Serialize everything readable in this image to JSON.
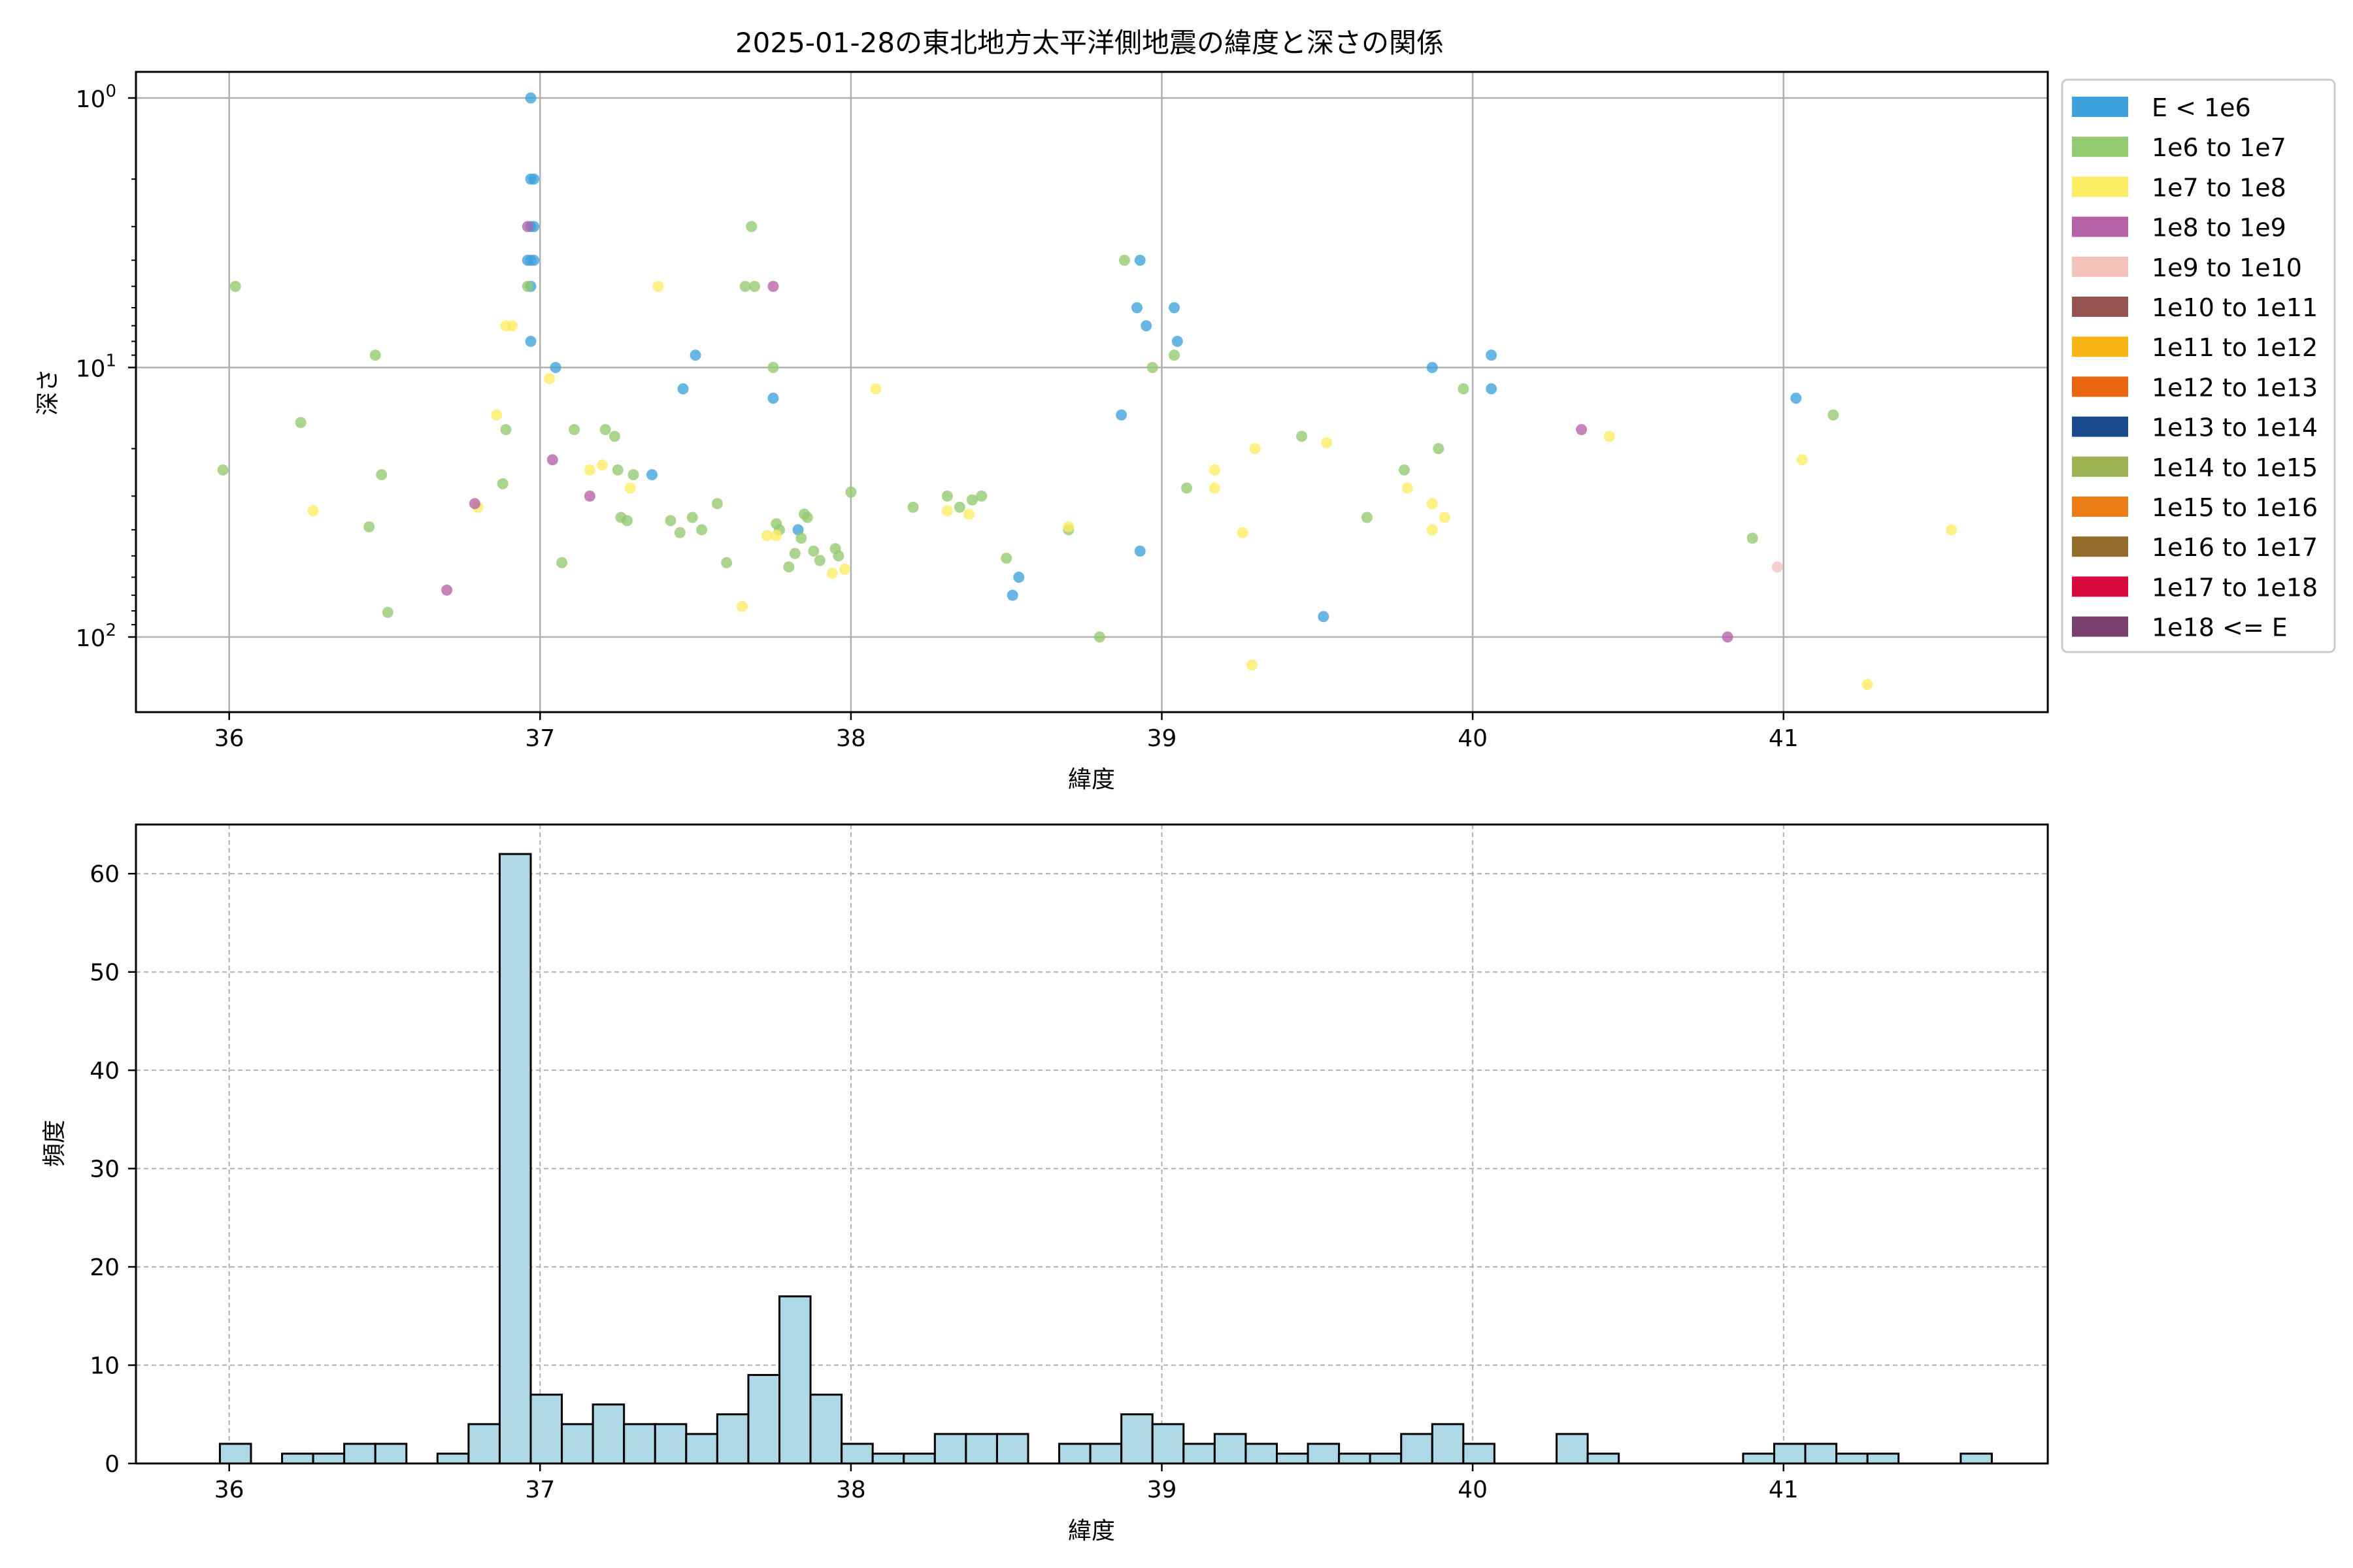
{
  "chart_data": [
    {
      "type": "scatter",
      "title": "2025-01-28の東北地方太平洋側地震の緯度と深さの関係",
      "xlabel": "緯度",
      "ylabel": "深さ",
      "xlim": [
        35.7,
        41.85
      ],
      "ylim": [
        190,
        0.8
      ],
      "yscale": "log",
      "y_inverted": true,
      "grid": true,
      "xticks": [
        "36",
        "37",
        "38",
        "39",
        "40",
        "41"
      ],
      "yticks": [
        {
          "value": 1,
          "base": "10",
          "exp": "0"
        },
        {
          "value": 10,
          "base": "10",
          "exp": "1"
        },
        {
          "value": 100,
          "base": "10",
          "exp": "2"
        }
      ],
      "legend_position": "outside-right",
      "legend": [
        {
          "label": "E < 1e6",
          "color": "#3ea2dc"
        },
        {
          "label": "1e6 to 1e7",
          "color": "#93c96f"
        },
        {
          "label": "1e7 to 1e8",
          "color": "#fcec63"
        },
        {
          "label": "1e8 to 1e9",
          "color": "#b662a8"
        },
        {
          "label": "1e9 to 1e10",
          "color": "#f4c2bb"
        },
        {
          "label": "1e10 to 1e11",
          "color": "#965350"
        },
        {
          "label": "1e11 to 1e12",
          "color": "#f9b515"
        },
        {
          "label": "1e12 to 1e13",
          "color": "#ea6510"
        },
        {
          "label": "1e13 to 1e14",
          "color": "#1c4a8e"
        },
        {
          "label": "1e14 to 1e15",
          "color": "#9cb253"
        },
        {
          "label": "1e15 to 1e16",
          "color": "#ea7d16"
        },
        {
          "label": "1e16 to 1e17",
          "color": "#946b2b"
        },
        {
          "label": "1e17 to 1e18",
          "color": "#d8093c"
        },
        {
          "label": "1e18 <= E",
          "color": "#793f6f"
        }
      ],
      "series": [
        {
          "points": [
            [
              36.97,
              1.0
            ],
            [
              36.97,
              2.0
            ],
            [
              36.98,
              2.0
            ],
            [
              36.97,
              3.0
            ],
            [
              36.98,
              3.0
            ],
            [
              36.96,
              4.0
            ],
            [
              36.97,
              4.0
            ],
            [
              36.98,
              4.0
            ],
            [
              36.97,
              5.0
            ],
            [
              36.97,
              8.0
            ],
            [
              37.05,
              10.0
            ],
            [
              37.5,
              9.0
            ],
            [
              37.46,
              12.0
            ],
            [
              37.75,
              13.0
            ],
            [
              37.83,
              40.0
            ],
            [
              38.52,
              70.0
            ],
            [
              38.54,
              60.0
            ],
            [
              38.87,
              15.0
            ],
            [
              38.92,
              6.0
            ],
            [
              38.93,
              4.0
            ],
            [
              38.95,
              7.0
            ],
            [
              38.93,
              48.0
            ],
            [
              39.04,
              6.0
            ],
            [
              39.05,
              8.0
            ],
            [
              39.52,
              84.0
            ],
            [
              39.87,
              10.0
            ],
            [
              40.06,
              9.0
            ],
            [
              40.06,
              12.0
            ],
            [
              41.04,
              13.0
            ],
            [
              37.36,
              25.0
            ]
          ]
        },
        {
          "points": [
            [
              35.98,
              24.0
            ],
            [
              36.02,
              5.0
            ],
            [
              36.23,
              16.0
            ],
            [
              36.45,
              39.0
            ],
            [
              36.47,
              9.0
            ],
            [
              36.49,
              25.0
            ],
            [
              36.51,
              81.0
            ],
            [
              36.88,
              27.0
            ],
            [
              36.89,
              17.0
            ],
            [
              36.96,
              5.0
            ],
            [
              37.07,
              53.0
            ],
            [
              37.11,
              17.0
            ],
            [
              37.21,
              17.0
            ],
            [
              37.24,
              18.0
            ],
            [
              37.25,
              24.0
            ],
            [
              37.26,
              36.0
            ],
            [
              37.28,
              37.0
            ],
            [
              37.3,
              25.0
            ],
            [
              37.42,
              37.0
            ],
            [
              37.45,
              41.0
            ],
            [
              37.49,
              36.0
            ],
            [
              37.52,
              40.0
            ],
            [
              37.57,
              32.0
            ],
            [
              37.6,
              53.0
            ],
            [
              37.66,
              5.0
            ],
            [
              37.68,
              3.0
            ],
            [
              37.69,
              5.0
            ],
            [
              37.75,
              10.0
            ],
            [
              37.76,
              38.0
            ],
            [
              37.77,
              40.0
            ],
            [
              37.8,
              55.0
            ],
            [
              37.82,
              49.0
            ],
            [
              37.84,
              43.0
            ],
            [
              37.85,
              35.0
            ],
            [
              37.86,
              36.0
            ],
            [
              37.88,
              48.0
            ],
            [
              37.9,
              52.0
            ],
            [
              37.95,
              47.0
            ],
            [
              37.96,
              50.0
            ],
            [
              38.0,
              29.0
            ],
            [
              38.2,
              33.0
            ],
            [
              38.31,
              30.0
            ],
            [
              38.35,
              33.0
            ],
            [
              38.39,
              31.0
            ],
            [
              38.42,
              30.0
            ],
            [
              38.5,
              51.0
            ],
            [
              38.7,
              40.0
            ],
            [
              38.8,
              100.0
            ],
            [
              38.88,
              4.0
            ],
            [
              38.97,
              10.0
            ],
            [
              39.04,
              9.0
            ],
            [
              39.08,
              28.0
            ],
            [
              39.45,
              18.0
            ],
            [
              39.66,
              36.0
            ],
            [
              39.78,
              24.0
            ],
            [
              39.89,
              20.0
            ],
            [
              39.97,
              12.0
            ],
            [
              40.9,
              43.0
            ],
            [
              41.16,
              15.0
            ]
          ]
        },
        {
          "points": [
            [
              36.27,
              34.0
            ],
            [
              36.8,
              33.0
            ],
            [
              36.86,
              15.0
            ],
            [
              36.89,
              7.0
            ],
            [
              36.91,
              7.0
            ],
            [
              37.03,
              11.0
            ],
            [
              37.16,
              24.0
            ],
            [
              37.2,
              23.0
            ],
            [
              37.38,
              5.0
            ],
            [
              37.29,
              28.0
            ],
            [
              37.65,
              77.0
            ],
            [
              37.73,
              42.0
            ],
            [
              37.76,
              42.0
            ],
            [
              37.94,
              58.0
            ],
            [
              37.98,
              56.0
            ],
            [
              38.08,
              12.0
            ],
            [
              38.31,
              34.0
            ],
            [
              38.38,
              35.0
            ],
            [
              38.7,
              39.0
            ],
            [
              39.17,
              24.0
            ],
            [
              39.17,
              28.0
            ],
            [
              39.26,
              41.0
            ],
            [
              39.3,
              20.0
            ],
            [
              39.29,
              127.0
            ],
            [
              39.53,
              19.0
            ],
            [
              39.79,
              28.0
            ],
            [
              39.87,
              32.0
            ],
            [
              39.87,
              40.0
            ],
            [
              39.91,
              36.0
            ],
            [
              40.44,
              18.0
            ],
            [
              41.06,
              22.0
            ],
            [
              41.27,
              150.0
            ],
            [
              41.54,
              40.0
            ]
          ]
        },
        {
          "points": [
            [
              36.7,
              67.0
            ],
            [
              36.79,
              32.0
            ],
            [
              36.96,
              3.0
            ],
            [
              37.04,
              22.0
            ],
            [
              37.16,
              30.0
            ],
            [
              37.75,
              5.0
            ],
            [
              40.35,
              17.0
            ],
            [
              40.82,
              100.0
            ]
          ]
        },
        {
          "points": [
            [
              40.98,
              55.0
            ]
          ]
        }
      ]
    },
    {
      "type": "bar",
      "subtype": "histogram",
      "xlabel": "緯度",
      "ylabel": "頻度",
      "xlim": [
        35.7,
        41.85
      ],
      "ylim": [
        0,
        65
      ],
      "grid": true,
      "bar_color": "#add8e6",
      "bar_edge_color": "#000000",
      "xticks": [
        "36",
        "37",
        "38",
        "39",
        "40",
        "41"
      ],
      "yticks": [
        "0",
        "10",
        "20",
        "30",
        "40",
        "50",
        "60"
      ],
      "bin_start": 35.97,
      "bin_width": 0.1,
      "values": [
        2,
        0,
        1,
        1,
        2,
        2,
        0,
        1,
        4,
        62,
        7,
        4,
        6,
        4,
        4,
        3,
        5,
        9,
        17,
        7,
        2,
        1,
        1,
        3,
        3,
        3,
        0,
        2,
        2,
        5,
        4,
        2,
        3,
        2,
        1,
        2,
        1,
        1,
        3,
        4,
        2,
        0,
        0,
        3,
        1,
        0,
        0,
        0,
        0,
        1,
        2,
        2,
        1,
        1,
        0,
        0,
        1
      ]
    }
  ]
}
